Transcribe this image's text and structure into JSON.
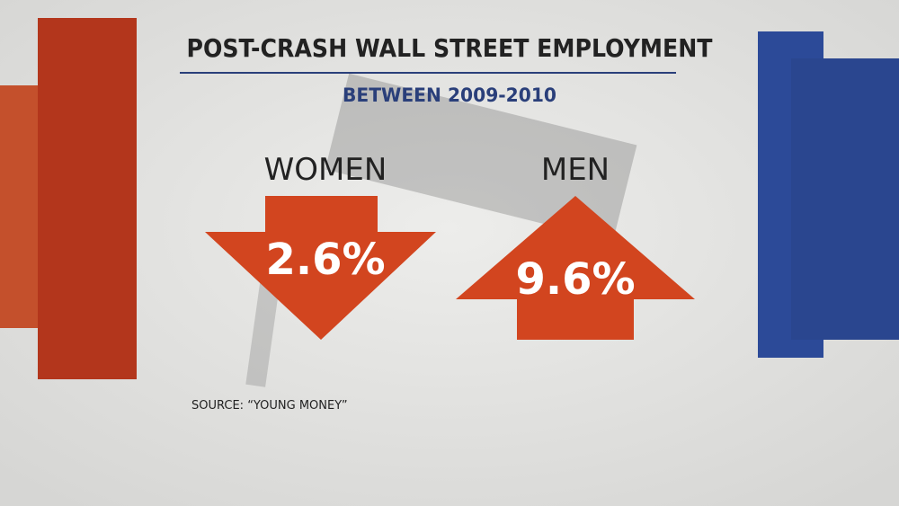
{
  "header": {
    "title": "POST-CRASH WALL STREET EMPLOYMENT",
    "subtitle": "BETWEEN 2009-2010"
  },
  "items": [
    {
      "label": "WOMEN",
      "value": "2.6%"
    },
    {
      "label": "MEN",
      "value": "9.6%"
    }
  ],
  "source": "SOURCE: “YOUNG MONEY”"
}
